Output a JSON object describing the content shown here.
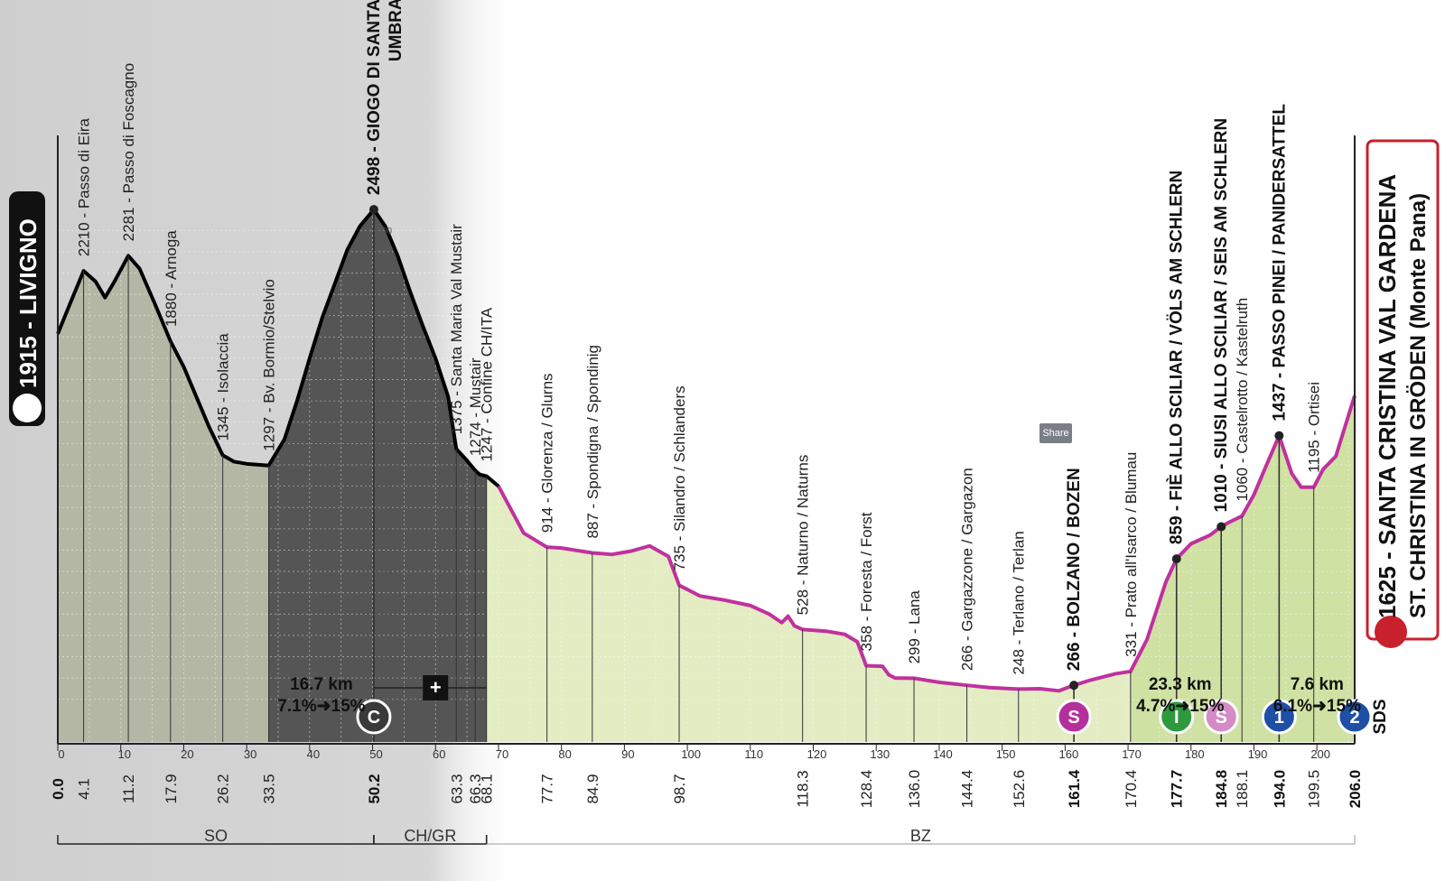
{
  "share_button": {
    "label": "Share"
  },
  "chart_data": {
    "type": "area",
    "title": "",
    "xlabel": "",
    "ylabel": "",
    "xlim": [
      0,
      206
    ],
    "ylim": [
      0,
      2600
    ],
    "x_ticks": [
      0,
      10,
      20,
      30,
      40,
      50,
      60,
      70,
      80,
      90,
      100,
      110,
      120,
      130,
      140,
      150,
      160,
      170,
      180,
      190,
      200
    ],
    "y_ticks": [
      200,
      400,
      600,
      800,
      1000,
      1200,
      1400,
      1600,
      1800,
      2000,
      2200,
      2400
    ],
    "grid": true,
    "start": {
      "altitude": "1915",
      "name": "LIVIGNO"
    },
    "finish": {
      "altitude": "1625",
      "name": "SANTA CRISTINA VAL GARDENA",
      "name2": "ST. CHRISTINA IN GRÖDEN (Monte Pana)"
    },
    "profile": [
      [
        0,
        1915
      ],
      [
        2,
        2060
      ],
      [
        4.1,
        2210
      ],
      [
        6,
        2160
      ],
      [
        7.5,
        2085
      ],
      [
        9,
        2160
      ],
      [
        11.2,
        2281
      ],
      [
        13,
        2220
      ],
      [
        15.5,
        2050
      ],
      [
        17.9,
        1880
      ],
      [
        20,
        1760
      ],
      [
        22,
        1620
      ],
      [
        24,
        1480
      ],
      [
        26.2,
        1345
      ],
      [
        28,
        1315
      ],
      [
        30,
        1305
      ],
      [
        33.5,
        1297
      ],
      [
        36,
        1420
      ],
      [
        38,
        1600
      ],
      [
        40,
        1800
      ],
      [
        42,
        1990
      ],
      [
        44,
        2150
      ],
      [
        46,
        2310
      ],
      [
        48,
        2420
      ],
      [
        50.2,
        2498
      ],
      [
        52,
        2420
      ],
      [
        54,
        2280
      ],
      [
        56,
        2110
      ],
      [
        58,
        1950
      ],
      [
        60,
        1800
      ],
      [
        62,
        1620
      ],
      [
        63.3,
        1375
      ],
      [
        65,
        1320
      ],
      [
        66.3,
        1274
      ],
      [
        67,
        1255
      ],
      [
        68.1,
        1247
      ],
      [
        70,
        1200
      ],
      [
        72,
        1090
      ],
      [
        74,
        980
      ],
      [
        77.7,
        914
      ],
      [
        80,
        910
      ],
      [
        84.9,
        887
      ],
      [
        88,
        880
      ],
      [
        91,
        895
      ],
      [
        94,
        920
      ],
      [
        97,
        870
      ],
      [
        98.7,
        735
      ],
      [
        102,
        685
      ],
      [
        106,
        665
      ],
      [
        110,
        640
      ],
      [
        113,
        600
      ],
      [
        115,
        560
      ],
      [
        116,
        590
      ],
      [
        117,
        545
      ],
      [
        118.3,
        528
      ],
      [
        122,
        520
      ],
      [
        125,
        505
      ],
      [
        127,
        470
      ],
      [
        128.4,
        358
      ],
      [
        131,
        355
      ],
      [
        132,
        315
      ],
      [
        133,
        300
      ],
      [
        136,
        299
      ],
      [
        140,
        280
      ],
      [
        144.4,
        266
      ],
      [
        148,
        255
      ],
      [
        152.6,
        248
      ],
      [
        156,
        250
      ],
      [
        159,
        240
      ],
      [
        161.4,
        266
      ],
      [
        164,
        290
      ],
      [
        168,
        320
      ],
      [
        170.4,
        331
      ],
      [
        173,
        480
      ],
      [
        176,
        750
      ],
      [
        177.7,
        859
      ],
      [
        180,
        930
      ],
      [
        183,
        970
      ],
      [
        184.8,
        1010
      ],
      [
        186,
        1030
      ],
      [
        188.1,
        1060
      ],
      [
        190,
        1160
      ],
      [
        192,
        1300
      ],
      [
        194,
        1437
      ],
      [
        196,
        1260
      ],
      [
        197.5,
        1195
      ],
      [
        199.5,
        1195
      ],
      [
        201,
        1280
      ],
      [
        203,
        1340
      ],
      [
        206,
        1625
      ]
    ],
    "points": [
      {
        "km": "0.0",
        "x": 0,
        "label": "",
        "major": true,
        "tick": false
      },
      {
        "km": "4.1",
        "x": 4.1,
        "alt": 2210,
        "label": "2210 - Passo di Eira",
        "major": false
      },
      {
        "km": "11.2",
        "x": 11.2,
        "alt": 2281,
        "label": "2281 - Passo di Foscagno",
        "major": false
      },
      {
        "km": "17.9",
        "x": 17.9,
        "alt": 1880,
        "label": "1880 - Arnoga",
        "major": false
      },
      {
        "km": "26.2",
        "x": 26.2,
        "alt": 1345,
        "label": "1345 - Isolaccia",
        "major": false
      },
      {
        "km": "33.5",
        "x": 33.5,
        "alt": 1297,
        "label": "1297 - Bv. Bormio/Stelvio",
        "major": false
      },
      {
        "km": "50.2",
        "x": 50.2,
        "alt": 2498,
        "label": "2498 - GIOGO DI SANTA MARIA",
        "label2": "UMBRAILPASS",
        "major": true
      },
      {
        "km": "63.3",
        "x": 63.3,
        "alt": 1375,
        "label": "1375 - Santa Maria Val Mustair",
        "major": false
      },
      {
        "km": "66.3",
        "x": 66.3,
        "alt": 1274,
        "label": "1274 - Mustair",
        "major": false
      },
      {
        "km": "68.1",
        "x": 68.1,
        "alt": 1247,
        "label": "1247 - Confine CH/ITA",
        "major": false
      },
      {
        "km": "77.7",
        "x": 77.7,
        "alt": 914,
        "label": "914 - Glorenza / Glurns",
        "major": false
      },
      {
        "km": "84.9",
        "x": 84.9,
        "alt": 887,
        "label": "887 - Spondigna / Spondinig",
        "major": false
      },
      {
        "km": "98.7",
        "x": 98.7,
        "alt": 735,
        "label": "735 - Silandro / Schlanders",
        "major": false
      },
      {
        "km": "118.3",
        "x": 118.3,
        "alt": 528,
        "label": "528 - Naturno / Naturns",
        "major": false
      },
      {
        "km": "128.4",
        "x": 128.4,
        "alt": 358,
        "label": "358 - Foresta / Forst",
        "major": false
      },
      {
        "km": "136.0",
        "x": 136,
        "alt": 299,
        "label": "299 - Lana",
        "major": false
      },
      {
        "km": "144.4",
        "x": 144.4,
        "alt": 266,
        "label": "266 - Gargazzone / Gargazon",
        "major": false
      },
      {
        "km": "152.6",
        "x": 152.6,
        "alt": 248,
        "label": "248 - Terlano / Terlan",
        "major": false
      },
      {
        "km": "161.4",
        "x": 161.4,
        "alt": 266,
        "label": "266 - BOLZANO / BOZEN",
        "major": true
      },
      {
        "km": "170.4",
        "x": 170.4,
        "alt": 331,
        "label": "331 - Prato all'Isarco / Blumau",
        "major": false
      },
      {
        "km": "177.7",
        "x": 177.7,
        "alt": 859,
        "label": "859 - FIÈ ALLO SCILIAR / VÖLS AM SCHLERN",
        "major": true
      },
      {
        "km": "184.8",
        "x": 184.8,
        "alt": 1010,
        "label": "1010 - SIUSI ALLO SCILIAR / SEIS AM SCHLERN",
        "major": true
      },
      {
        "km": "188.1",
        "x": 188.1,
        "alt": 1060,
        "label": "1060 - Castelrotto / Kastelruth",
        "major": false
      },
      {
        "km": "194.0",
        "x": 194,
        "alt": 1437,
        "label": "1437 - PASSO PINEI / PANIDERSATTEL",
        "major": true
      },
      {
        "km": "199.5",
        "x": 199.5,
        "alt": 1195,
        "label": "1195 - Ortisei",
        "major": false
      },
      {
        "km": "206.0",
        "x": 206,
        "label": "",
        "major": true
      }
    ],
    "climbs": [
      {
        "length": "16.7 km",
        "gradient": "7.1%➜15%",
        "x": 50.2,
        "badge": "C"
      },
      {
        "length": "23.3 km",
        "gradient": "4.7%➜15%",
        "x": 177.7,
        "badge": "I"
      },
      {
        "length": "7.6 km",
        "gradient": "6.1%➜15%",
        "x": 194,
        "badge": "1"
      }
    ],
    "sprints": [
      {
        "x": 161.4,
        "badge": "S"
      },
      {
        "x": 184.8,
        "badge": "S"
      }
    ],
    "finish_badge": "2",
    "sponsor": "SDS",
    "regions": [
      {
        "label": "SO",
        "from": 0,
        "to": 50.2
      },
      {
        "label": "CH/GR",
        "from": 50.2,
        "to": 68.1
      },
      {
        "label": "BZ",
        "from": 68.1,
        "to": 206
      }
    ],
    "colors": {
      "profile_dark": "#000000",
      "profile_pink": "#c0319e",
      "fill_green": "#e3ecc2",
      "climb_zone": "#cfe1a3",
      "shade_dark": "#555555",
      "frame_red": "#c8202c",
      "sprint": "#b5309d",
      "climb_badge": "#2e9a3d",
      "cat1": "#1f4fa6"
    }
  }
}
